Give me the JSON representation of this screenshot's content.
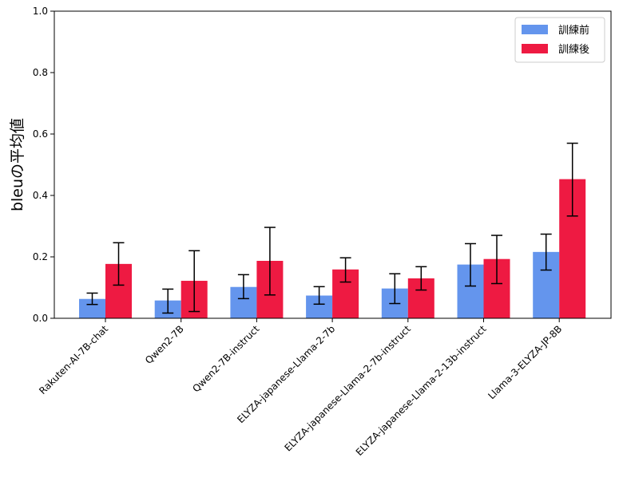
{
  "chart_data": {
    "type": "bar",
    "title": "",
    "xlabel": "",
    "ylabel": "bleuの平均値",
    "ylim": [
      0,
      1.0
    ],
    "yticks": [
      "0.0",
      "0.2",
      "0.4",
      "0.6",
      "0.8",
      "1.0"
    ],
    "grid": false,
    "legend_position": "top-right",
    "error_bars": true,
    "categories": [
      "Rakuten-AI-7B-chat",
      "Qwen2-7B",
      "Qwen2-7B-instruct",
      "ELYZA-japanese-Llama-2-7b",
      "ELYZA-japanese-Llama-2-7b-instruct",
      "ELYZA-japanese-Llama-2-13b-instruct",
      "Llama-3-ELYZA-JP-8B"
    ],
    "series": [
      {
        "name": "訓練前",
        "color": "#6495ED",
        "values": [
          0.063,
          0.058,
          0.102,
          0.074,
          0.097,
          0.175,
          0.216
        ],
        "err_low": [
          0.045,
          0.017,
          0.064,
          0.046,
          0.048,
          0.105,
          0.157
        ],
        "err_high": [
          0.082,
          0.095,
          0.142,
          0.103,
          0.145,
          0.243,
          0.274
        ]
      },
      {
        "name": "訓練後",
        "color": "#EE1A42",
        "values": [
          0.177,
          0.122,
          0.187,
          0.159,
          0.13,
          0.193,
          0.453
        ],
        "err_low": [
          0.108,
          0.022,
          0.076,
          0.118,
          0.092,
          0.113,
          0.333
        ],
        "err_high": [
          0.246,
          0.22,
          0.296,
          0.197,
          0.168,
          0.27,
          0.57
        ]
      }
    ]
  }
}
